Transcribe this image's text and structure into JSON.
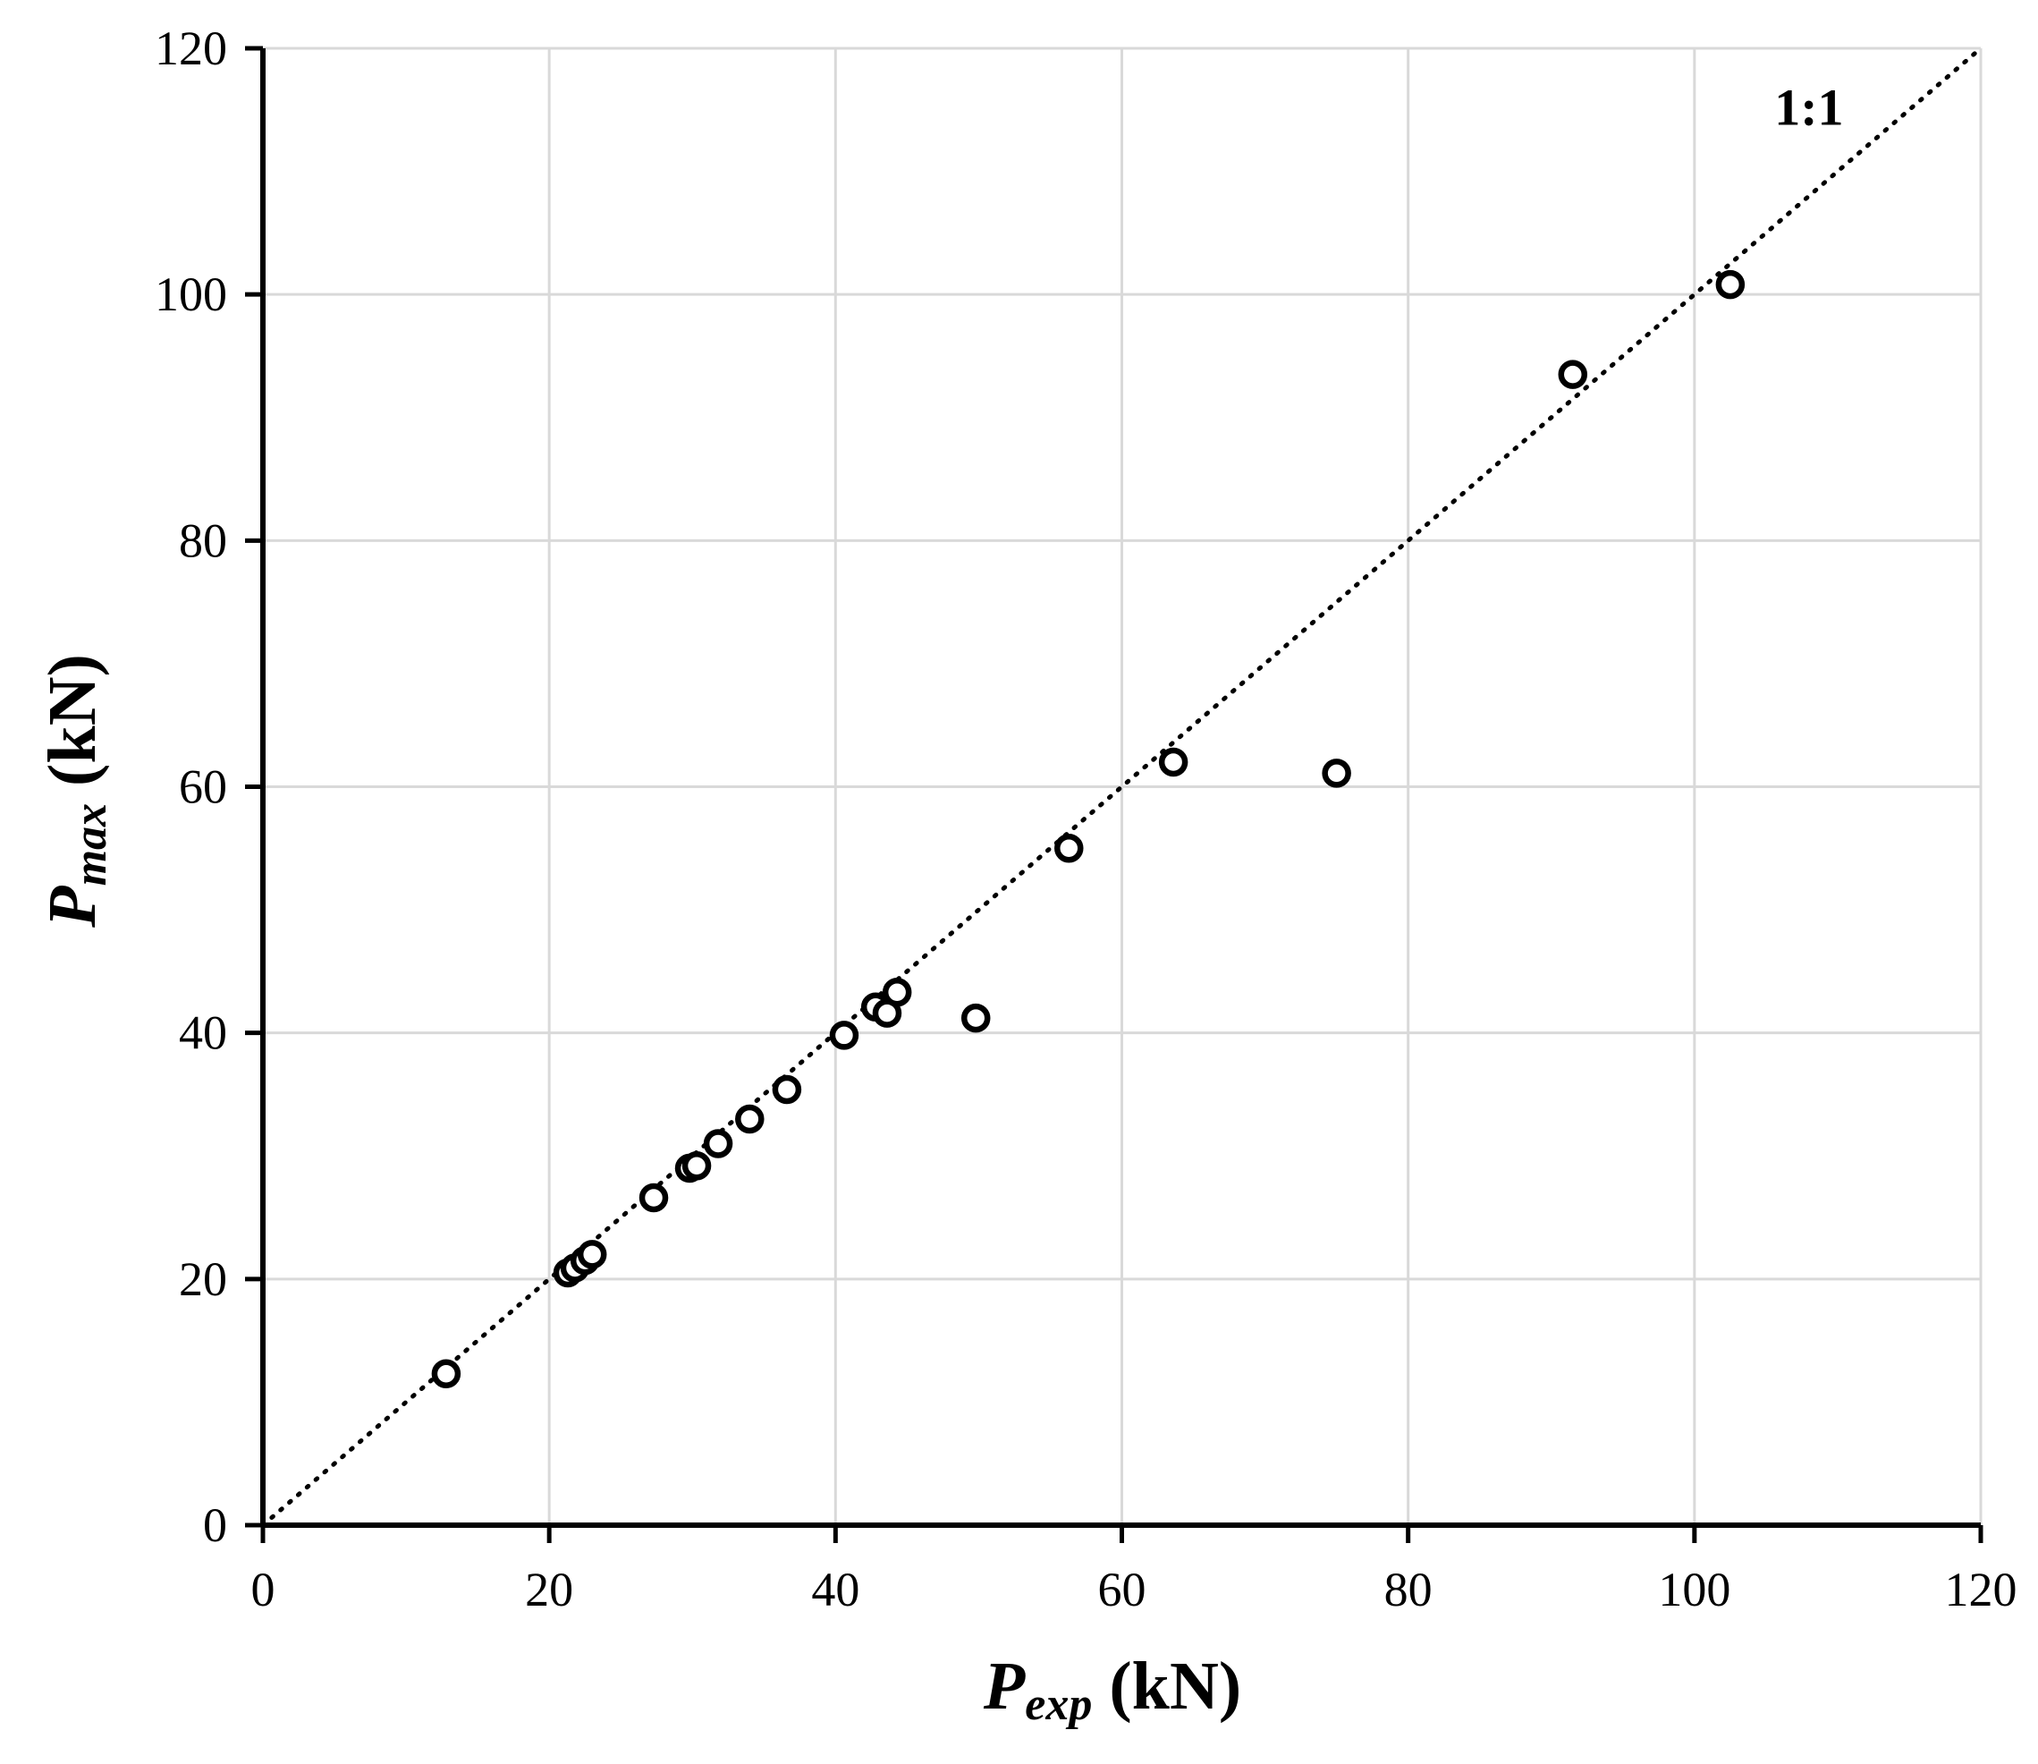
{
  "chart_data": {
    "type": "scatter",
    "title": "",
    "xlabel": {
      "symbol": "P",
      "subscript": "exp",
      "unit": " (kN)"
    },
    "ylabel": {
      "symbol": "P",
      "subscript": "max",
      "unit": " (kN)"
    },
    "xlim": [
      0,
      120
    ],
    "ylim": [
      0,
      120
    ],
    "xticks": [
      0,
      20,
      40,
      60,
      80,
      100,
      120
    ],
    "yticks": [
      0,
      20,
      40,
      60,
      80,
      100,
      120
    ],
    "grid": true,
    "legend": "none",
    "colors": {
      "marker": "#000000",
      "grid": "#d9d9d9",
      "axis": "#000000",
      "reference_line": "#000000"
    },
    "reference_line": {
      "label": "1:1",
      "from": [
        0,
        0
      ],
      "to": [
        120,
        120
      ],
      "style": "dotted"
    },
    "series": [
      {
        "marker": "open-circle",
        "points": [
          [
            12.8,
            12.3
          ],
          [
            21.3,
            20.5
          ],
          [
            21.8,
            20.9
          ],
          [
            22.5,
            21.5
          ],
          [
            23.0,
            22.0
          ],
          [
            27.3,
            26.6
          ],
          [
            29.8,
            29.0
          ],
          [
            30.3,
            29.2
          ],
          [
            31.8,
            31.0
          ],
          [
            34.0,
            33.0
          ],
          [
            36.6,
            35.4
          ],
          [
            40.6,
            39.8
          ],
          [
            42.8,
            42.1
          ],
          [
            43.6,
            41.6
          ],
          [
            44.3,
            43.3
          ],
          [
            49.8,
            41.2
          ],
          [
            56.3,
            55.0
          ],
          [
            63.6,
            62.0
          ],
          [
            75.0,
            61.1
          ],
          [
            91.5,
            93.5
          ],
          [
            102.5,
            100.8
          ]
        ]
      }
    ]
  }
}
